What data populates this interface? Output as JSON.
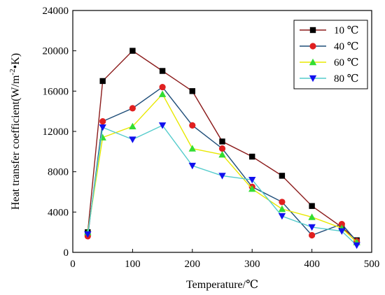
{
  "chart_data": {
    "type": "line",
    "xlabel": "Temperature/℃",
    "ylabel_main": "Heat transfer coefficient(W/m",
    "ylabel_sup": "-2",
    "ylabel_tail": "•K)",
    "xlim": [
      0,
      500
    ],
    "ylim": [
      0,
      24000
    ],
    "x_ticks": [
      0,
      100,
      200,
      300,
      400,
      500
    ],
    "y_ticks": [
      0,
      4000,
      8000,
      12000,
      16000,
      20000,
      24000
    ],
    "grid": false,
    "legend_position": "top-right",
    "x": [
      25,
      50,
      100,
      150,
      200,
      250,
      300,
      350,
      400,
      450,
      475
    ],
    "series": [
      {
        "name": "10 ℃",
        "color": "#8B1A1A",
        "marker": "square",
        "marker_color": "#000000",
        "values": [
          2000,
          17000,
          20000,
          18000,
          16000,
          11000,
          9500,
          7600,
          4600,
          2500,
          1200
        ]
      },
      {
        "name": "40 ℃",
        "color": "#1F4E79",
        "marker": "circle",
        "marker_color": "#E02020",
        "values": [
          1600,
          13000,
          14300,
          16400,
          12600,
          10300,
          6500,
          5000,
          1700,
          2800,
          1100
        ]
      },
      {
        "name": "60 ℃",
        "color": "#E8E800",
        "marker": "triangle-up",
        "marker_color": "#33DD33",
        "values": [
          2000,
          11400,
          12500,
          15700,
          10300,
          9700,
          6300,
          4300,
          3500,
          2400,
          1000
        ]
      },
      {
        "name": "80 ℃",
        "color": "#55CCCC",
        "marker": "triangle-down",
        "marker_color": "#1111EE",
        "values": [
          1800,
          12400,
          11200,
          12600,
          8600,
          7600,
          7200,
          3600,
          2500,
          2100,
          700
        ]
      }
    ]
  }
}
